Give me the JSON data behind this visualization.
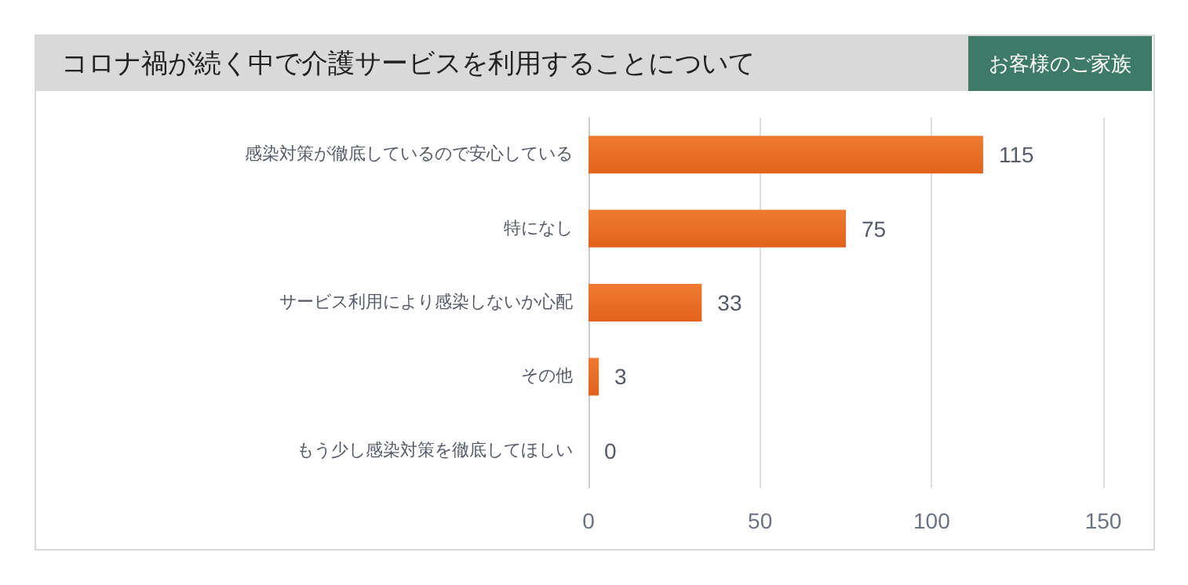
{
  "chart_data": {
    "type": "bar",
    "orientation": "horizontal",
    "title": "コロナ禍が続く中で介護サービスを利用することについて",
    "subtitle": "お客様のご家族",
    "categories": [
      "感染対策が徹底しているので安心している",
      "特になし",
      "サービス利用により感染しないか心配",
      "その他",
      "もう少し感染対策を徹底してほしい"
    ],
    "values": [
      115,
      75,
      33,
      3,
      0
    ],
    "color": "#ee7a30",
    "xlim": [
      0,
      150
    ],
    "xticks": [
      0,
      50,
      100,
      150
    ],
    "grid": "x",
    "data_labels": true
  }
}
